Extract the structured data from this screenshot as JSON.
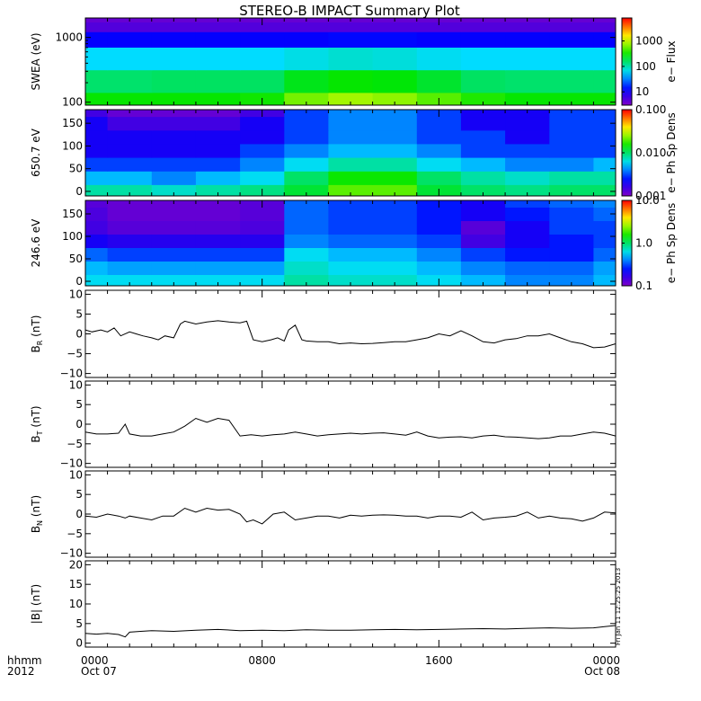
{
  "title": "STEREO-B IMPACT Summary Plot",
  "time_axis": {
    "label_line1": "hhmm",
    "label_line2": "2012",
    "ticks": [
      {
        "hours": 0,
        "label": "0000",
        "date": "Oct 07"
      },
      {
        "hours": 8,
        "label": "0800",
        "date": ""
      },
      {
        "hours": 16,
        "label": "1600",
        "date": ""
      },
      {
        "hours": 24,
        "label": "0000",
        "date": "Oct 08"
      }
    ],
    "range_hours": [
      0,
      24
    ]
  },
  "timestamp": "Fri Jan 11 12:25:25 2013",
  "panels": [
    {
      "id": "swea",
      "kind": "spectrogram",
      "ylabel": "SWEA (eV)",
      "yscale": "log",
      "ylim": [
        90,
        2000
      ],
      "yticks": [
        {
          "v": 100,
          "label": "100"
        },
        {
          "v": 1000,
          "label": "1000"
        }
      ],
      "colorbar": {
        "label": "e− Flux",
        "scale": "log",
        "range": [
          3,
          8000
        ],
        "ticks": [
          {
            "v": 10,
            "label": "10"
          },
          {
            "v": 100,
            "label": "100"
          },
          {
            "v": 1000,
            "label": "1000"
          }
        ]
      }
    },
    {
      "id": "pa650",
      "kind": "spectrogram",
      "ylabel": "650.7 eV",
      "yscale": "linear",
      "ylim": [
        -10,
        180
      ],
      "yticks": [
        {
          "v": 0,
          "label": "0"
        },
        {
          "v": 50,
          "label": "50"
        },
        {
          "v": 100,
          "label": "100"
        },
        {
          "v": 150,
          "label": "150"
        }
      ],
      "colorbar": {
        "label": "e− Ph Sp Dens",
        "scale": "log",
        "range": [
          0.001,
          0.1
        ],
        "ticks": [
          {
            "v": 0.001,
            "label": "0.001"
          },
          {
            "v": 0.01,
            "label": "0.010"
          },
          {
            "v": 0.1,
            "label": "0.100"
          }
        ]
      }
    },
    {
      "id": "pa246",
      "kind": "spectrogram",
      "ylabel": "246.6 eV",
      "yscale": "linear",
      "ylim": [
        -10,
        180
      ],
      "yticks": [
        {
          "v": 0,
          "label": "0"
        },
        {
          "v": 50,
          "label": "50"
        },
        {
          "v": 100,
          "label": "100"
        },
        {
          "v": 150,
          "label": "150"
        }
      ],
      "colorbar": {
        "label": "e− Ph Sp Dens",
        "scale": "log",
        "range": [
          0.1,
          10
        ],
        "ticks": [
          {
            "v": 0.1,
            "label": "0.1"
          },
          {
            "v": 1,
            "label": "1.0"
          },
          {
            "v": 10,
            "label": "10.0"
          }
        ]
      }
    },
    {
      "id": "br",
      "kind": "line",
      "ylabel": "B",
      "ylabel_sub": "R",
      "ylabel_unit": " (nT)",
      "yscale": "linear",
      "ylim": [
        -11,
        11
      ],
      "yticks": [
        {
          "v": -10,
          "label": "−10"
        },
        {
          "v": -5,
          "label": "−5"
        },
        {
          "v": 0,
          "label": "0"
        },
        {
          "v": 5,
          "label": "5"
        },
        {
          "v": 10,
          "label": "10"
        }
      ]
    },
    {
      "id": "bt",
      "kind": "line",
      "ylabel": "B",
      "ylabel_sub": "T",
      "ylabel_unit": " (nT)",
      "yscale": "linear",
      "ylim": [
        -11,
        11
      ],
      "yticks": [
        {
          "v": -10,
          "label": "−10"
        },
        {
          "v": -5,
          "label": "−5"
        },
        {
          "v": 0,
          "label": "0"
        },
        {
          "v": 5,
          "label": "5"
        },
        {
          "v": 10,
          "label": "10"
        }
      ]
    },
    {
      "id": "bn",
      "kind": "line",
      "ylabel": "B",
      "ylabel_sub": "N",
      "ylabel_unit": " (nT)",
      "yscale": "linear",
      "ylim": [
        -11,
        11
      ],
      "yticks": [
        {
          "v": -10,
          "label": "−10"
        },
        {
          "v": -5,
          "label": "−5"
        },
        {
          "v": 0,
          "label": "0"
        },
        {
          "v": 5,
          "label": "5"
        },
        {
          "v": 10,
          "label": "10"
        }
      ]
    },
    {
      "id": "bmag",
      "kind": "line",
      "ylabel": "|B| (nT)",
      "yscale": "linear",
      "ylim": [
        -1,
        21
      ],
      "yticks": [
        {
          "v": 0,
          "label": "0"
        },
        {
          "v": 5,
          "label": "5"
        },
        {
          "v": 10,
          "label": "10"
        },
        {
          "v": 15,
          "label": "15"
        },
        {
          "v": 20,
          "label": "20"
        }
      ]
    }
  ],
  "chart_data": [
    {
      "type": "heatmap",
      "panel": "swea",
      "title": "STEREO-B IMPACT Summary Plot",
      "ylabel": "SWEA (eV)",
      "zlabel": "e− Flux",
      "x_hours": [
        0,
        2,
        4,
        6,
        8,
        10,
        12,
        14,
        16,
        18,
        20,
        22,
        24
      ],
      "y": [
        100,
        200,
        500,
        1000,
        1500,
        2000
      ],
      "z": [
        [
          300,
          300,
          300,
          300,
          320,
          600,
          800,
          700,
          500,
          350,
          300,
          300,
          300
        ],
        [
          150,
          150,
          160,
          160,
          160,
          250,
          300,
          280,
          220,
          160,
          150,
          150,
          150
        ],
        [
          60,
          60,
          60,
          60,
          60,
          70,
          80,
          75,
          65,
          60,
          60,
          60,
          60
        ],
        [
          12,
          12,
          12,
          12,
          12,
          12,
          13,
          13,
          12,
          12,
          12,
          12,
          12
        ],
        [
          5,
          5,
          5,
          5,
          5,
          5,
          5,
          5,
          5,
          5,
          5,
          5,
          5
        ],
        [
          4,
          4,
          4,
          4,
          4,
          4,
          4,
          4,
          4,
          4,
          4,
          4,
          4
        ]
      ]
    },
    {
      "type": "heatmap",
      "panel": "pa650",
      "ylabel": "650.7 eV",
      "zlabel": "e− Ph Sp Dens",
      "x_hours": [
        0,
        2,
        4,
        6,
        8,
        10,
        12,
        14,
        16,
        18,
        20,
        22,
        24
      ],
      "y": [
        0,
        30,
        60,
        90,
        120,
        150,
        180
      ],
      "z": [
        [
          0.008,
          0.008,
          0.007,
          0.008,
          0.009,
          0.012,
          0.02,
          0.02,
          0.012,
          0.01,
          0.009,
          0.01,
          0.01
        ],
        [
          0.005,
          0.005,
          0.004,
          0.005,
          0.006,
          0.01,
          0.015,
          0.015,
          0.01,
          0.008,
          0.007,
          0.008,
          0.008
        ],
        [
          0.003,
          0.003,
          0.003,
          0.003,
          0.004,
          0.006,
          0.008,
          0.008,
          0.006,
          0.005,
          0.004,
          0.004,
          0.005
        ],
        [
          0.002,
          0.002,
          0.002,
          0.002,
          0.003,
          0.004,
          0.005,
          0.005,
          0.004,
          0.003,
          0.003,
          0.003,
          0.003
        ],
        [
          0.002,
          0.002,
          0.002,
          0.002,
          0.002,
          0.003,
          0.004,
          0.004,
          0.003,
          0.003,
          0.002,
          0.003,
          0.003
        ],
        [
          0.002,
          0.0015,
          0.0015,
          0.0015,
          0.002,
          0.003,
          0.004,
          0.004,
          0.003,
          0.002,
          0.002,
          0.003,
          0.003
        ],
        [
          0.0015,
          0.0012,
          0.0012,
          0.0012,
          0.0015,
          0.003,
          0.004,
          0.004,
          0.003,
          0.002,
          0.002,
          0.003,
          0.003
        ]
      ]
    },
    {
      "type": "heatmap",
      "panel": "pa246",
      "ylabel": "246.6 eV",
      "zlabel": "e− Ph Sp Dens",
      "x_hours": [
        0,
        2,
        4,
        6,
        8,
        10,
        12,
        14,
        16,
        18,
        20,
        22,
        24
      ],
      "y": [
        0,
        30,
        60,
        90,
        120,
        150,
        180
      ],
      "z": [
        [
          0.6,
          0.6,
          0.6,
          0.6,
          0.6,
          0.8,
          0.7,
          0.7,
          0.6,
          0.5,
          0.4,
          0.4,
          0.5
        ],
        [
          0.5,
          0.45,
          0.45,
          0.45,
          0.45,
          0.7,
          0.6,
          0.6,
          0.5,
          0.4,
          0.35,
          0.35,
          0.45
        ],
        [
          0.35,
          0.3,
          0.3,
          0.3,
          0.3,
          0.6,
          0.5,
          0.5,
          0.4,
          0.3,
          0.25,
          0.25,
          0.35
        ],
        [
          0.2,
          0.18,
          0.18,
          0.18,
          0.18,
          0.4,
          0.35,
          0.35,
          0.3,
          0.15,
          0.2,
          0.25,
          0.3
        ],
        [
          0.15,
          0.13,
          0.13,
          0.13,
          0.14,
          0.35,
          0.3,
          0.3,
          0.25,
          0.13,
          0.2,
          0.3,
          0.3
        ],
        [
          0.14,
          0.12,
          0.12,
          0.12,
          0.13,
          0.35,
          0.3,
          0.3,
          0.25,
          0.2,
          0.25,
          0.3,
          0.35
        ],
        [
          0.13,
          0.12,
          0.12,
          0.12,
          0.13,
          0.35,
          0.3,
          0.3,
          0.25,
          0.2,
          0.3,
          0.35,
          0.4
        ]
      ]
    },
    {
      "type": "line",
      "panel": "br",
      "ylabel": "BR (nT)",
      "ylim": [
        -11,
        11
      ],
      "x": [
        0,
        0.3,
        0.7,
        1,
        1.3,
        1.6,
        2,
        2.3,
        2.6,
        3,
        3.3,
        3.6,
        4,
        4.3,
        4.5,
        5,
        5.5,
        6,
        6.5,
        7,
        7.3,
        7.6,
        8,
        8.4,
        8.7,
        9,
        9.2,
        9.5,
        9.8,
        10,
        10.5,
        11,
        11.5,
        12,
        12.5,
        13,
        13.5,
        14,
        14.5,
        15,
        15.5,
        16,
        16.5,
        17,
        17.5,
        18,
        18.5,
        19,
        19.5,
        20,
        20.5,
        21,
        21.5,
        22,
        22.5,
        23,
        23.5,
        24
      ],
      "y": [
        1,
        0.5,
        1,
        0.5,
        1.5,
        -0.5,
        0.5,
        0,
        -0.5,
        -1,
        -1.5,
        -0.5,
        -1,
        2.5,
        3.2,
        2.5,
        3,
        3.3,
        3,
        2.8,
        3.2,
        -1.5,
        -2,
        -1.5,
        -1,
        -1.8,
        1,
        2.2,
        -1.5,
        -1.8,
        -2,
        -2,
        -2.5,
        -2.3,
        -2.5,
        -2.4,
        -2.2,
        -2,
        -2,
        -1.5,
        -1,
        0,
        -0.5,
        0.8,
        -0.5,
        -2,
        -2.3,
        -1.5,
        -1.2,
        -0.5,
        -0.5,
        0,
        -1,
        -2,
        -2.5,
        -3.5,
        -3.3,
        -2.5
      ]
    },
    {
      "type": "line",
      "panel": "bt",
      "ylabel": "BT (nT)",
      "ylim": [
        -11,
        11
      ],
      "x": [
        0,
        0.5,
        1,
        1.5,
        1.8,
        2,
        2.5,
        3,
        3.5,
        4,
        4.5,
        5,
        5.5,
        6,
        6.5,
        7,
        7.5,
        8,
        8.5,
        9,
        9.5,
        10,
        10.5,
        11,
        11.5,
        12,
        12.5,
        13,
        13.5,
        14,
        14.5,
        15,
        15.5,
        16,
        16.5,
        17,
        17.5,
        18,
        18.5,
        19,
        19.5,
        20,
        20.5,
        21,
        21.5,
        22,
        22.5,
        23,
        23.5,
        24
      ],
      "y": [
        -2,
        -2.5,
        -2.5,
        -2.3,
        0,
        -2.5,
        -3,
        -3,
        -2.5,
        -2,
        -0.5,
        1.5,
        0.5,
        1.5,
        1,
        -3,
        -2.7,
        -3,
        -2.7,
        -2.5,
        -2,
        -2.5,
        -3,
        -2.7,
        -2.5,
        -2.3,
        -2.5,
        -2.3,
        -2.2,
        -2.5,
        -2.8,
        -2,
        -3,
        -3.5,
        -3.3,
        -3.2,
        -3.5,
        -3,
        -2.8,
        -3.2,
        -3.3,
        -3.5,
        -3.7,
        -3.5,
        -3,
        -3,
        -2.5,
        -2,
        -2.3,
        -3
      ]
    },
    {
      "type": "line",
      "panel": "bn",
      "ylabel": "BN (nT)",
      "ylim": [
        -11,
        11
      ],
      "x": [
        0,
        0.5,
        1,
        1.5,
        1.8,
        2,
        2.5,
        3,
        3.5,
        4,
        4.5,
        5,
        5.5,
        6,
        6.5,
        7,
        7.3,
        7.6,
        8,
        8.5,
        9,
        9.5,
        10,
        10.5,
        11,
        11.5,
        12,
        12.5,
        13,
        13.5,
        14,
        14.5,
        15,
        15.5,
        16,
        16.5,
        17,
        17.5,
        18,
        18.5,
        19,
        19.5,
        20,
        20.5,
        21,
        21.5,
        22,
        22.5,
        23,
        23.5,
        24
      ],
      "y": [
        -0.5,
        -0.8,
        0,
        -0.5,
        -1,
        -0.5,
        -1,
        -1.5,
        -0.5,
        -0.5,
        1.5,
        0.5,
        1.5,
        1,
        1.2,
        0,
        -2,
        -1.5,
        -2.5,
        0,
        0.5,
        -1.5,
        -1,
        -0.5,
        -0.5,
        -1,
        -0.3,
        -0.5,
        -0.3,
        -0.2,
        -0.3,
        -0.5,
        -0.5,
        -1,
        -0.5,
        -0.5,
        -0.8,
        0.5,
        -1.5,
        -1,
        -0.8,
        -0.5,
        0.5,
        -1,
        -0.5,
        -1,
        -1.2,
        -1.8,
        -1,
        0.5,
        0.3
      ]
    },
    {
      "type": "line",
      "panel": "bmag",
      "ylabel": "|B| (nT)",
      "ylim": [
        -1,
        21
      ],
      "x": [
        0,
        0.5,
        1,
        1.5,
        1.8,
        2,
        2.5,
        3,
        4,
        5,
        6,
        7,
        8,
        9,
        10,
        11,
        12,
        13,
        14,
        15,
        16,
        17,
        18,
        19,
        20,
        21,
        22,
        23,
        23.5,
        24
      ],
      "y": [
        2.5,
        2.3,
        2.5,
        2.2,
        1.6,
        2.8,
        3,
        3.2,
        3,
        3.3,
        3.5,
        3.2,
        3.3,
        3.2,
        3.4,
        3.3,
        3.3,
        3.4,
        3.5,
        3.4,
        3.5,
        3.6,
        3.7,
        3.6,
        3.8,
        3.9,
        3.8,
        3.9,
        4.2,
        4.5
      ]
    }
  ]
}
